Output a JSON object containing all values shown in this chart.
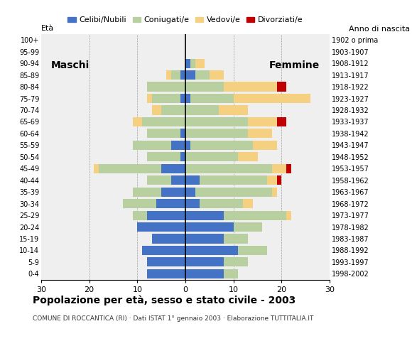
{
  "age_groups": [
    "0-4",
    "5-9",
    "10-14",
    "15-19",
    "20-24",
    "25-29",
    "30-34",
    "35-39",
    "40-44",
    "45-49",
    "50-54",
    "55-59",
    "60-64",
    "65-69",
    "70-74",
    "75-79",
    "80-84",
    "85-89",
    "90-94",
    "95-99",
    "100+"
  ],
  "birth_years": [
    "1998-2002",
    "1993-1997",
    "1988-1992",
    "1983-1987",
    "1978-1982",
    "1973-1977",
    "1968-1972",
    "1963-1967",
    "1958-1962",
    "1953-1957",
    "1948-1952",
    "1943-1947",
    "1938-1942",
    "1933-1937",
    "1928-1932",
    "1923-1927",
    "1918-1922",
    "1913-1917",
    "1908-1912",
    "1903-1907",
    "1902 o prima"
  ],
  "males": {
    "celibe": [
      8,
      8,
      9,
      7,
      10,
      8,
      6,
      5,
      3,
      5,
      1,
      3,
      1,
      0,
      0,
      1,
      0,
      1,
      0,
      0,
      0
    ],
    "coniugato": [
      0,
      0,
      0,
      0,
      0,
      3,
      7,
      6,
      5,
      13,
      7,
      8,
      7,
      9,
      5,
      6,
      8,
      2,
      0,
      0,
      0
    ],
    "vedovo": [
      0,
      0,
      0,
      0,
      0,
      0,
      0,
      0,
      0,
      1,
      0,
      0,
      0,
      2,
      2,
      1,
      0,
      1,
      0,
      0,
      0
    ],
    "divorziato": [
      0,
      0,
      0,
      0,
      0,
      0,
      0,
      0,
      0,
      0,
      0,
      0,
      0,
      0,
      0,
      0,
      0,
      0,
      0,
      0,
      0
    ]
  },
  "females": {
    "nubile": [
      8,
      8,
      11,
      8,
      10,
      8,
      3,
      2,
      3,
      0,
      0,
      1,
      0,
      0,
      0,
      1,
      0,
      2,
      1,
      0,
      0
    ],
    "coniugata": [
      3,
      5,
      6,
      5,
      6,
      13,
      9,
      16,
      14,
      18,
      11,
      13,
      13,
      13,
      7,
      9,
      8,
      3,
      1,
      0,
      0
    ],
    "vedova": [
      0,
      0,
      0,
      0,
      0,
      1,
      2,
      1,
      2,
      3,
      4,
      5,
      5,
      6,
      6,
      16,
      11,
      3,
      2,
      0,
      0
    ],
    "divorziata": [
      0,
      0,
      0,
      0,
      0,
      0,
      0,
      0,
      1,
      1,
      0,
      0,
      0,
      2,
      0,
      0,
      2,
      0,
      0,
      0,
      0
    ]
  },
  "colors": {
    "celibe_nubile": "#4472c4",
    "coniugato_coniugata": "#b8cfa0",
    "vedovo_vedova": "#f5d080",
    "divorziato_divorziata": "#c00000"
  },
  "title": "Popolazione per età, sesso e stato civile - 2003",
  "subtitle": "COMUNE DI ROCCANTICA (RI) · Dati ISTAT 1° gennaio 2003 · Elaborazione TUTTITALIA.IT",
  "xlabel_left": "Maschi",
  "xlabel_right": "Femmine",
  "ylabel_left": "Età",
  "ylabel_right": "Anno di nascita",
  "xlim": 30,
  "legend_labels": [
    "Celibi/Nubili",
    "Coniugati/e",
    "Vedovi/e",
    "Divorziati/e"
  ],
  "background_color": "#ffffff",
  "plot_bg_color": "#efefef"
}
